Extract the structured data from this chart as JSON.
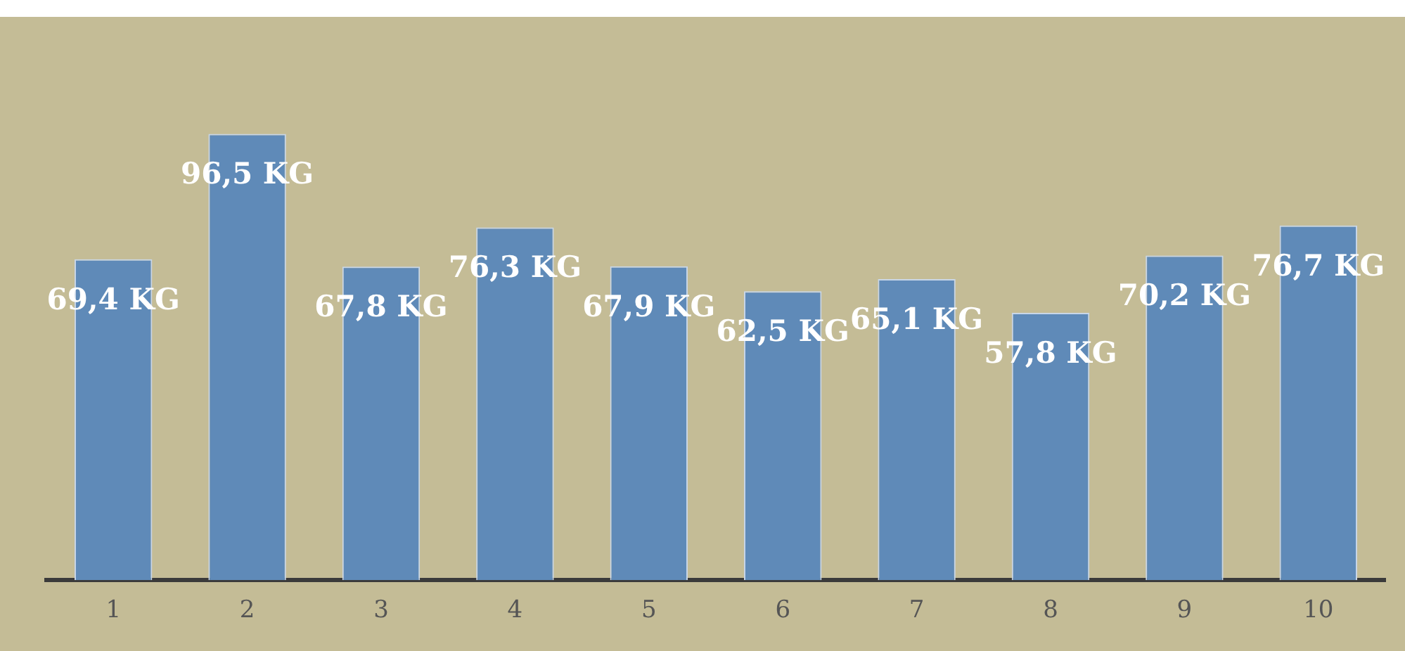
{
  "chart_data": {
    "type": "bar",
    "categories": [
      "1",
      "2",
      "3",
      "4",
      "5",
      "6",
      "7",
      "8",
      "9",
      "10"
    ],
    "values": [
      69.4,
      96.5,
      67.8,
      76.3,
      67.9,
      62.5,
      65.1,
      57.8,
      70.2,
      76.7
    ],
    "value_labels": [
      "69,4 KG",
      "96,5 KG",
      "67,8 KG",
      "76,3 KG",
      "67,9 KG",
      "62,5 KG",
      "65,1 KG",
      "57,8 KG",
      "70,2 KG",
      "76,7 KG"
    ],
    "color": "#5f8ab8",
    "grid": false,
    "legend": false
  }
}
